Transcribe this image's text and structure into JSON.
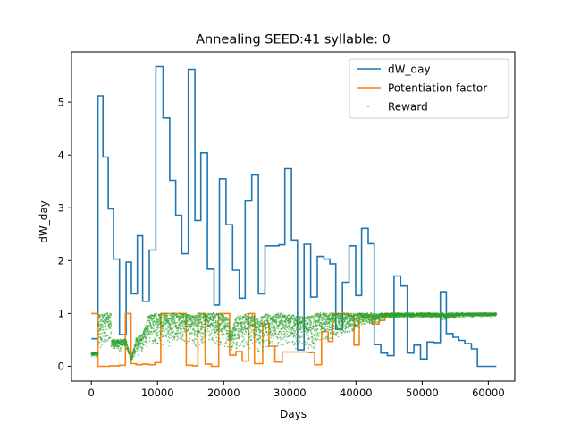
{
  "chart_data": {
    "type": "line",
    "title": "Annealing SEED:41 syllable: 0",
    "xlabel": "Days",
    "ylabel": "dW_day",
    "xlim": [
      -3000,
      64000
    ],
    "ylim": [
      -0.28,
      5.95
    ],
    "xticks": [
      0,
      10000,
      20000,
      30000,
      40000,
      50000,
      60000
    ],
    "yticks": [
      0,
      1,
      2,
      3,
      4,
      5
    ],
    "grid": false,
    "legend_position": "top-right",
    "series": [
      {
        "name": "dW_day",
        "color": "#1f77b4",
        "style": "step",
        "x": [
          0,
          1000,
          1750,
          2550,
          3350,
          4250,
          5250,
          6050,
          6950,
          7750,
          8750,
          9750,
          10850,
          11850,
          12750,
          13650,
          14650,
          15650,
          16550,
          17550,
          18550,
          19350,
          20350,
          21350,
          22350,
          23250,
          24250,
          25250,
          26250,
          27250,
          28350,
          29250,
          30250,
          31150,
          32150,
          33150,
          34150,
          35150,
          36050,
          36950,
          37950,
          38950,
          39950,
          40850,
          41850,
          42750,
          43750,
          44750,
          45750,
          46750,
          47750,
          48750,
          49750,
          50750,
          51750,
          52750,
          53650,
          54650,
          55550,
          56450,
          57450,
          58350,
          59350,
          60350,
          61200
        ],
        "y": [
          0.52,
          5.12,
          3.96,
          2.98,
          2.03,
          0.6,
          1.97,
          1.37,
          2.47,
          1.23,
          2.2,
          5.67,
          4.7,
          3.52,
          2.86,
          2.13,
          5.62,
          2.76,
          4.04,
          1.84,
          1.16,
          3.55,
          2.68,
          1.82,
          1.29,
          3.13,
          3.62,
          1.37,
          2.28,
          2.28,
          2.3,
          3.74,
          2.39,
          0.31,
          2.31,
          1.31,
          2.08,
          2.03,
          1.94,
          0.7,
          1.59,
          2.28,
          1.34,
          2.61,
          2.32,
          0.41,
          0.25,
          0.2,
          1.71,
          1.52,
          0.25,
          0.4,
          0.14,
          0.46,
          0.45,
          1.41,
          0.62,
          0.55,
          0.49,
          0.43,
          0.33,
          0.0,
          0.0,
          0.0,
          0.0
        ]
      },
      {
        "name": "Potentiation factor",
        "color": "#ff7f0e",
        "style": "step",
        "x": [
          0,
          1000,
          2750,
          4250,
          5150,
          6000,
          6750,
          7700,
          8650,
          9600,
          10500,
          14350,
          15300,
          16100,
          17200,
          18150,
          19250,
          20900,
          21850,
          22800,
          23750,
          24650,
          25900,
          26850,
          27750,
          28850,
          32800,
          33750,
          34800,
          35800,
          36500,
          38800,
          39700,
          40500,
          42450,
          43500,
          44400,
          45300,
          46300,
          50700,
          52700,
          54800,
          55500,
          56500,
          58000,
          61200
        ],
        "y": [
          1.0,
          0.0,
          0.01,
          0.02,
          1.0,
          0.05,
          0.03,
          0.04,
          0.03,
          0.07,
          1.0,
          0.02,
          0.01,
          1.0,
          0.04,
          0.0,
          1.0,
          0.21,
          0.28,
          0.1,
          1.0,
          0.05,
          0.8,
          0.38,
          0.08,
          0.27,
          0.26,
          0.03,
          0.66,
          0.47,
          1.0,
          0.96,
          0.4,
          0.93,
          0.8,
          0.87,
          1.0,
          0.99,
          0.97,
          0.99,
          0.96,
          0.97,
          0.98,
          0.99,
          0.98,
          0.98
        ]
      },
      {
        "name": "Reward",
        "color": "#2ca02c",
        "style": "scatter-bands",
        "x": [
          0,
          1000,
          1000,
          3000,
          3000,
          4300,
          5200,
          6000,
          6800,
          7700,
          8600,
          9600,
          10600,
          14500,
          15400,
          16300,
          17200,
          18200,
          19300,
          20600,
          21100,
          21800,
          22600,
          23600,
          24600,
          25400,
          26300,
          27100,
          28100,
          29000,
          31900,
          32800,
          33600,
          34600,
          35600,
          36400,
          38000,
          38900,
          39800,
          40700,
          41600,
          42600,
          43600,
          44500,
          45300,
          46300,
          50700,
          52700,
          53600,
          54600,
          56600,
          58600,
          61200
        ],
        "y_low": [
          0.18,
          0.2,
          0.3,
          0.32,
          0.3,
          0.28,
          0.35,
          0.1,
          0.15,
          0.25,
          0.3,
          0.35,
          0.35,
          0.4,
          0.3,
          0.2,
          0.45,
          0.4,
          0.35,
          0.22,
          0.25,
          0.3,
          0.2,
          0.3,
          0.25,
          0.2,
          0.35,
          0.3,
          0.3,
          0.35,
          0.3,
          0.15,
          0.15,
          0.45,
          0.4,
          0.5,
          0.55,
          0.6,
          0.65,
          0.7,
          0.8,
          0.75,
          0.8,
          0.9,
          0.9,
          0.92,
          0.92,
          0.9,
          0.85,
          0.9,
          0.93,
          0.94,
          0.95
        ],
        "y_high": [
          0.25,
          0.25,
          1.0,
          1.0,
          0.5,
          0.5,
          0.5,
          0.15,
          0.55,
          0.6,
          0.95,
          1.0,
          1.0,
          1.0,
          0.95,
          1.0,
          1.0,
          1.0,
          1.0,
          0.95,
          0.6,
          0.95,
          0.95,
          1.0,
          0.95,
          0.9,
          1.0,
          0.95,
          1.0,
          1.0,
          0.95,
          0.95,
          0.98,
          1.0,
          1.0,
          1.0,
          1.0,
          1.0,
          1.0,
          1.0,
          1.0,
          1.0,
          1.0,
          1.0,
          1.0,
          1.0,
          1.0,
          1.0,
          1.0,
          1.0,
          1.0,
          1.0,
          1.0
        ]
      }
    ]
  }
}
